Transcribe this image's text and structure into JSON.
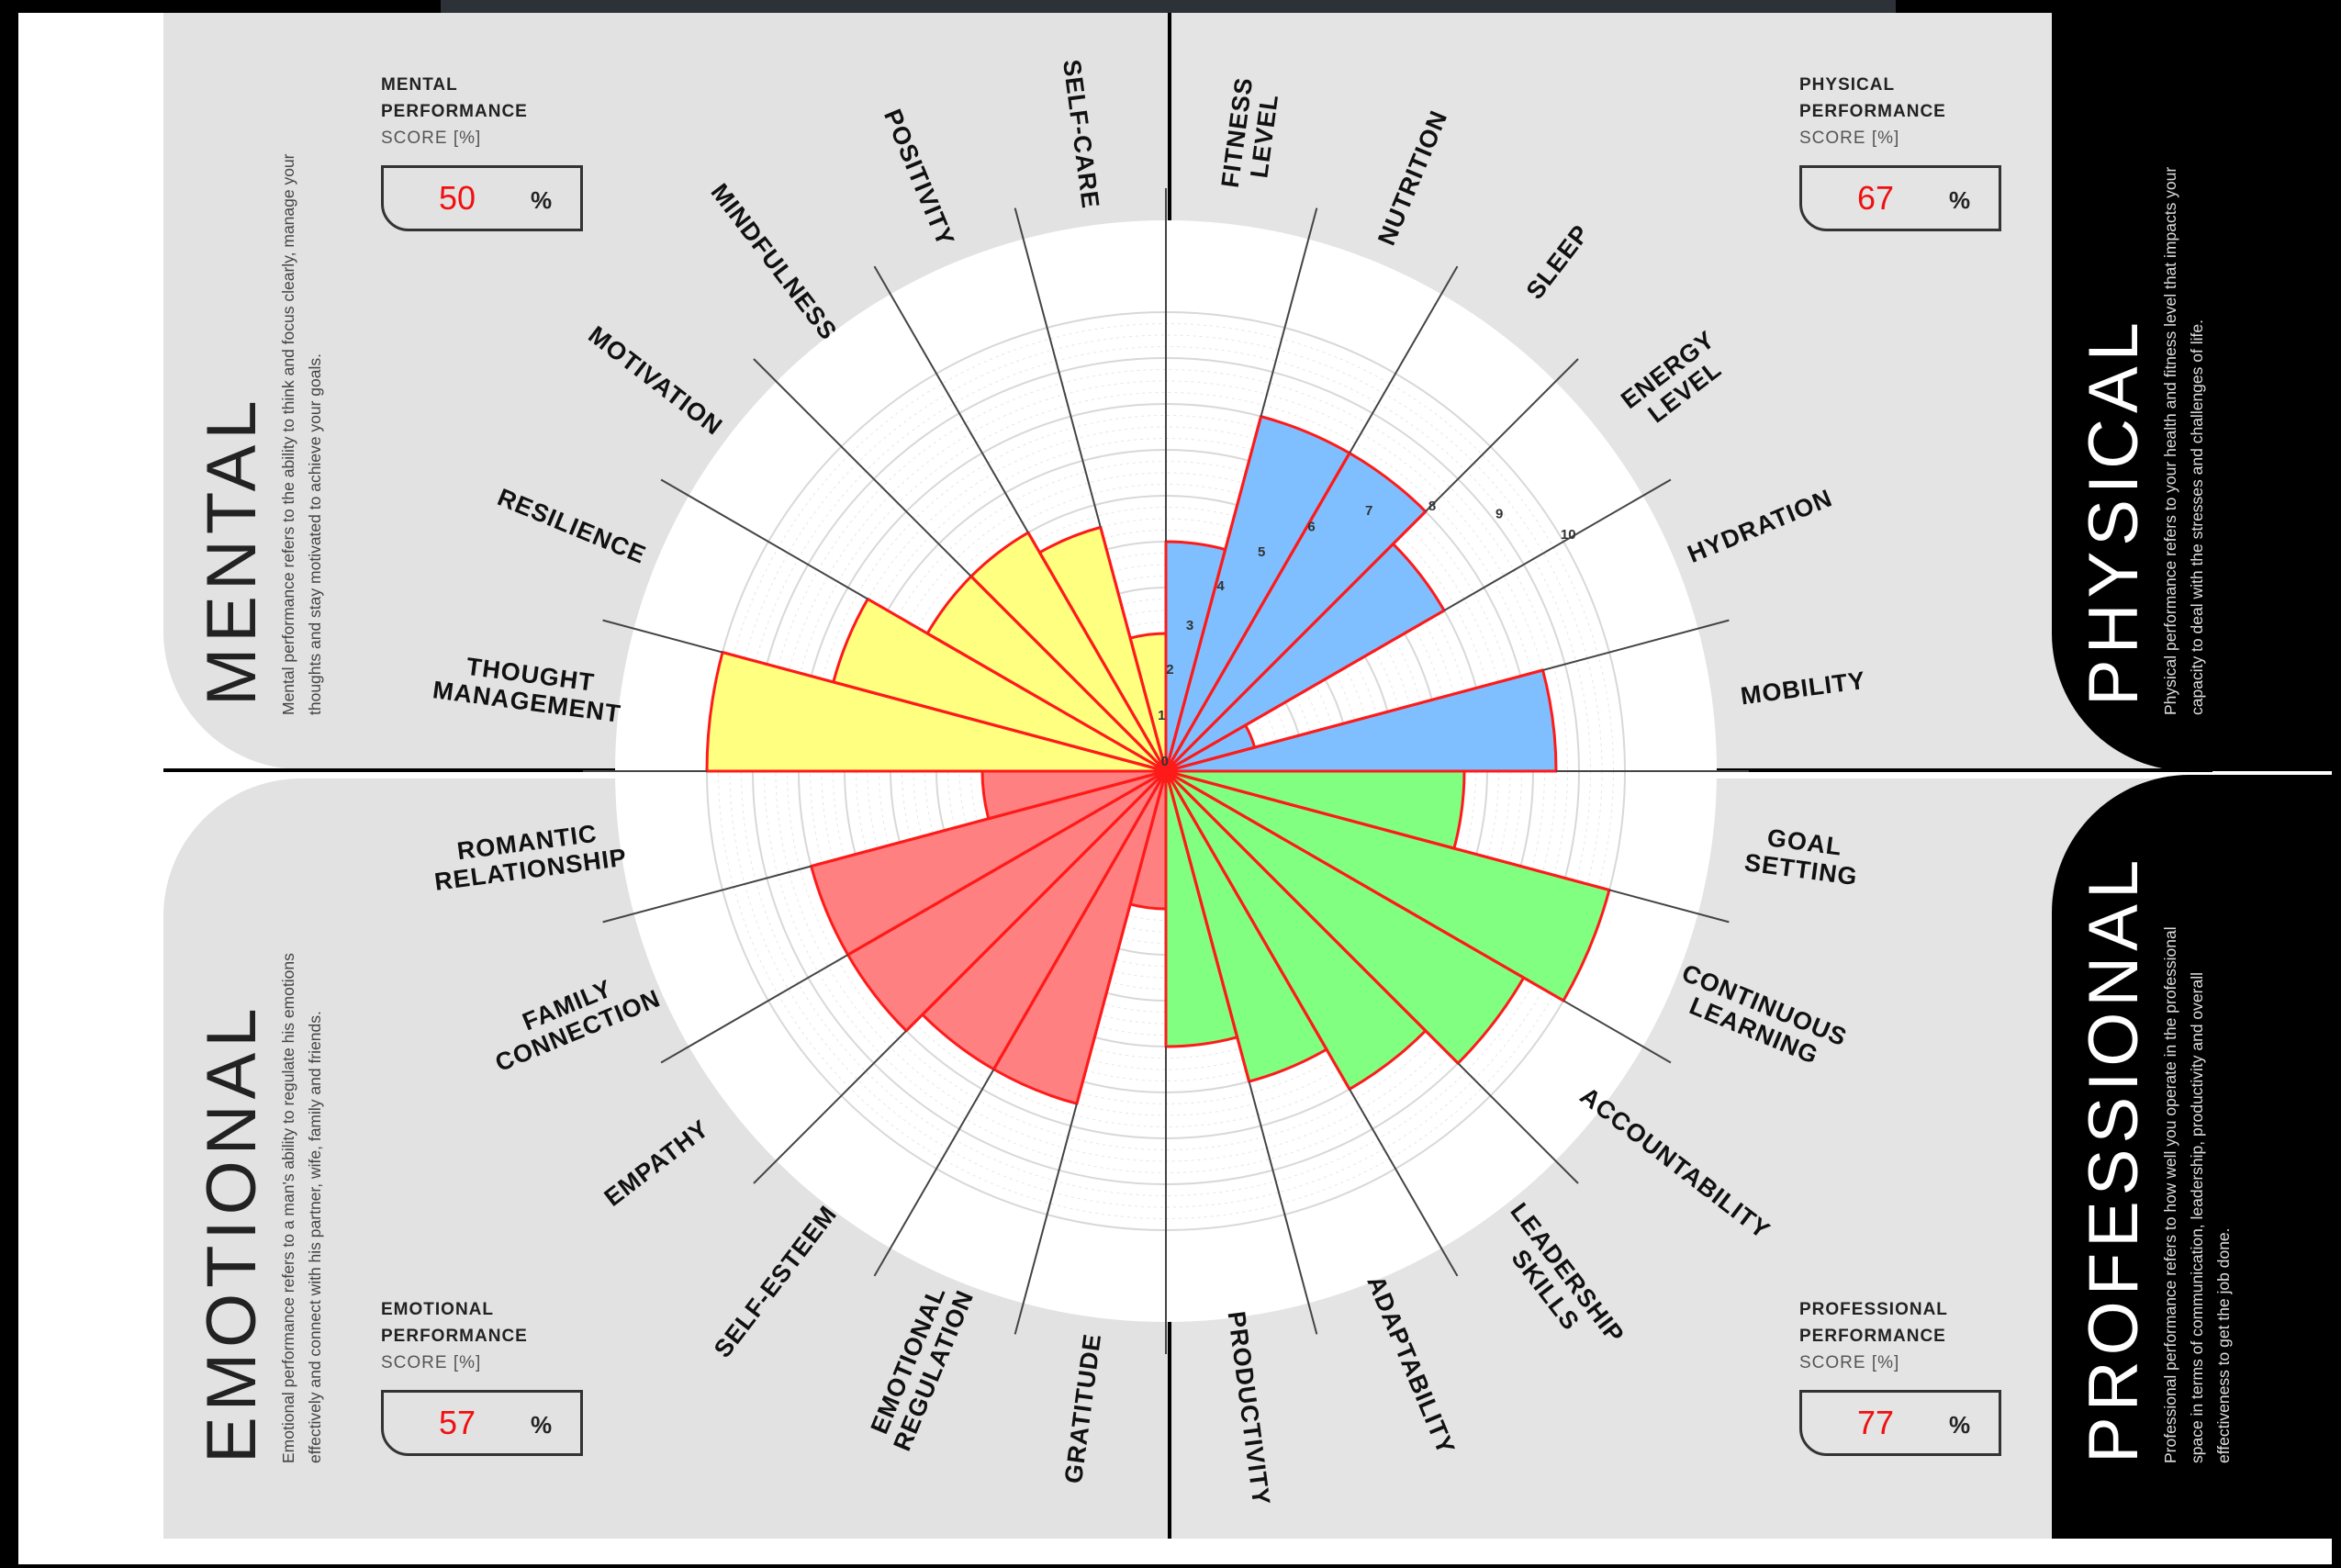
{
  "quadrants": {
    "mental": {
      "title": "MENTAL",
      "description": "Mental performance refers to the ability to think and focus clearly, manage your thoughts and stay motivated to achieve your goals.",
      "score_heading_1": "MENTAL",
      "score_heading_2": "PERFORMANCE",
      "score_unit_label": "SCORE [%]",
      "score": "50",
      "percent_sign": "%",
      "color": "#ffff80"
    },
    "physical": {
      "title": "PHYSICAL",
      "description": "Physical performance refers to your health and fitness level that impacts your capacity to deal with the stresses and challenges of life.",
      "score_heading_1": "PHYSICAL",
      "score_heading_2": "PERFORMANCE",
      "score_unit_label": "SCORE [%]",
      "score": "67",
      "percent_sign": "%",
      "color": "#7fbfff"
    },
    "emotional": {
      "title": "EMOTIONAL",
      "description": "Emotional performance refers to a man's ability to regulate his emotions effectively and connect with his partner, wife, family and friends.",
      "score_heading_1": "EMOTIONAL",
      "score_heading_2": "PERFORMANCE",
      "score_unit_label": "SCORE [%]",
      "score": "57",
      "percent_sign": "%",
      "color": "#ff8080"
    },
    "professional": {
      "title": "PROFESSIONAL",
      "description": "Professional performance refers to how well you operate in the professional space in terms of communication, leadership, productivity and overall effectiveness to get the job done.",
      "score_heading_1": "PROFESSIONAL",
      "score_heading_2": "PERFORMANCE",
      "score_unit_label": "SCORE [%]",
      "score": "77",
      "percent_sign": "%",
      "color": "#80ff80"
    }
  },
  "chart_data": {
    "type": "polar-bar",
    "radial_range": [
      0,
      10
    ],
    "ring_labels": [
      "0",
      "1",
      "2",
      "3",
      "4",
      "5",
      "6",
      "7",
      "8",
      "9",
      "10"
    ],
    "categories": [
      {
        "label": [
          "FITNESS",
          "LEVEL"
        ],
        "group": "physical",
        "value": 5
      },
      {
        "label": [
          "NUTRITION"
        ],
        "group": "physical",
        "value": 8
      },
      {
        "label": [
          "SLEEP"
        ],
        "group": "physical",
        "value": 8
      },
      {
        "label": [
          "ENERGY",
          "LEVEL"
        ],
        "group": "physical",
        "value": 7
      },
      {
        "label": [
          "HYDRATION"
        ],
        "group": "physical",
        "value": 2
      },
      {
        "label": [
          "MOBILITY"
        ],
        "group": "physical",
        "value": 8.5
      },
      {
        "label": [
          "GOAL",
          "SETTING"
        ],
        "group": "professional",
        "value": 6.5
      },
      {
        "label": [
          "CONTINUOUS",
          "LEARNING"
        ],
        "group": "professional",
        "value": 10
      },
      {
        "label": [
          "ACCOUNTABILITY"
        ],
        "group": "professional",
        "value": 9
      },
      {
        "label": [
          "LEADERSHIP",
          "SKILLS"
        ],
        "group": "professional",
        "value": 8
      },
      {
        "label": [
          "ADAPTABILITY"
        ],
        "group": "professional",
        "value": 7
      },
      {
        "label": [
          "PRODUCTIVITY"
        ],
        "group": "professional",
        "value": 6
      },
      {
        "label": [
          "GRATITUDE"
        ],
        "group": "emotional",
        "value": 3
      },
      {
        "label": [
          "EMOTIONAL",
          "REGULATION"
        ],
        "group": "emotional",
        "value": 7.5
      },
      {
        "label": [
          "SELF-ESTEEM"
        ],
        "group": "emotional",
        "value": 7.5
      },
      {
        "label": [
          "EMPATHY"
        ],
        "group": "emotional",
        "value": 8
      },
      {
        "label": [
          "FAMILY",
          "CONNECTION"
        ],
        "group": "emotional",
        "value": 8
      },
      {
        "label": [
          "ROMANTIC",
          "RELATIONSHIP"
        ],
        "group": "emotional",
        "value": 4
      },
      {
        "label": [
          "THOUGHT",
          "MANAGEMENT"
        ],
        "group": "mental",
        "value": 10
      },
      {
        "label": [
          "RESILIENCE"
        ],
        "group": "mental",
        "value": 7.5
      },
      {
        "label": [
          "MOTIVATION"
        ],
        "group": "mental",
        "value": 6
      },
      {
        "label": [
          "MINDFULNESS"
        ],
        "group": "mental",
        "value": 6
      },
      {
        "label": [
          "POSITIVITY"
        ],
        "group": "mental",
        "value": 5.5
      },
      {
        "label": [
          "SELF-CARE"
        ],
        "group": "mental",
        "value": 3
      }
    ]
  }
}
